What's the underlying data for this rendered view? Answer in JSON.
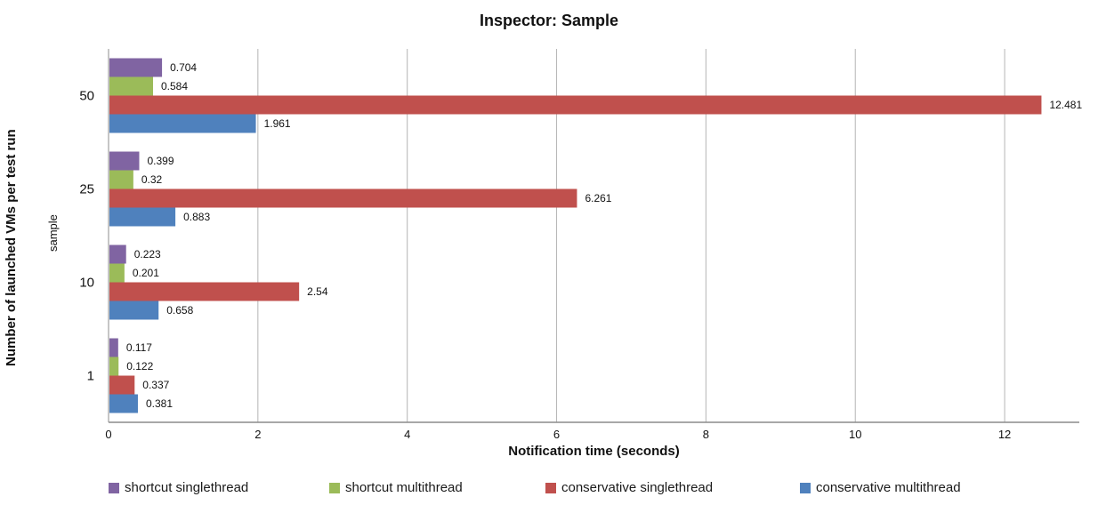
{
  "title": "Inspector: Sample",
  "colors": {
    "series_purple": "#8064A2",
    "series_green": "#9BBB59",
    "series_red": "#C0504D",
    "series_blue": "#4F81BD",
    "gridline": "#B5B5B5",
    "axis_line": "#8C8C8C",
    "text": "#111111"
  },
  "chart_data": {
    "type": "bar",
    "orientation": "horizontal",
    "title": "Inspector: Sample",
    "xlabel": "Notification time (seconds)",
    "ylabel": "Number of launched VMs per test run",
    "ylabel_secondary": "sample",
    "categories": [
      "50",
      "25",
      "10",
      "1"
    ],
    "series": [
      {
        "name": "shortcut singlethread",
        "color": "#8064A2",
        "values": [
          0.704,
          0.399,
          0.223,
          0.117
        ],
        "labels": [
          "0.704",
          "0.399",
          "0.223",
          "0.117"
        ]
      },
      {
        "name": "shortcut multithread",
        "color": "#9BBB59",
        "values": [
          0.584,
          0.32,
          0.201,
          0.122
        ],
        "labels": [
          "0.584",
          "0.32",
          "0.201",
          "0.122"
        ]
      },
      {
        "name": "conservative singlethread",
        "color": "#C0504D",
        "values": [
          12.481,
          6.261,
          2.54,
          0.337
        ],
        "labels": [
          "12.481",
          "6.261",
          "2.54",
          "0.337"
        ]
      },
      {
        "name": "conservative multithread",
        "color": "#4F81BD",
        "values": [
          1.961,
          0.883,
          0.658,
          0.381
        ],
        "labels": [
          "1.961",
          "0.883",
          "0.658",
          "0.381"
        ]
      }
    ],
    "xlim": [
      0,
      13
    ],
    "xticks": [
      "0",
      "2",
      "4",
      "6",
      "8",
      "10",
      "12"
    ],
    "grid": "vertical-only",
    "legend_position": "bottom",
    "value_labels_shown": true
  }
}
